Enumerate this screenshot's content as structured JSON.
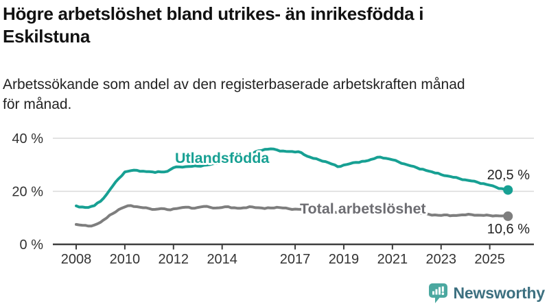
{
  "title": {
    "line1": "Högre arbetslöshet bland utrikes- än inrikesfödda i",
    "line2": "Eskilstuna"
  },
  "subtitle": {
    "line1": "Arbetssökande som andel av den registerbaserade arbetskraften månad",
    "line2": "för månad."
  },
  "chart_data": {
    "type": "line",
    "title": "Högre arbetslöshet bland utrikes- än inrikesfödda i Eskilstuna",
    "subtitle": "Arbetssökande som andel av den registerbaserade arbetskraften månad för månad.",
    "xlabel": "",
    "ylabel": "",
    "x_start": 2008.0,
    "x_step": 0.25,
    "x_range": [
      2008,
      2025.75
    ],
    "ylim": [
      0,
      44
    ],
    "grid": "horizontal",
    "legend_position": "inline-labels",
    "x_ticks": [
      "2008",
      "2010",
      "2012",
      "2014",
      "2017",
      "2019",
      "2021",
      "2023",
      "2025"
    ],
    "x_tick_years": [
      2008,
      2010,
      2012,
      2014,
      2017,
      2019,
      2021,
      2023,
      2025
    ],
    "y_ticks": [
      {
        "value": 0,
        "label": "0 %"
      },
      {
        "value": 20,
        "label": "20 %"
      },
      {
        "value": 40,
        "label": "40 %"
      }
    ],
    "series": [
      {
        "name": "Utlandsfödda",
        "color": "#17a093",
        "label_color": "#17a093",
        "end_label": "20,5 %",
        "end_value": 20.5,
        "values": [
          14.5,
          14.1,
          13.9,
          14.6,
          16.2,
          18.8,
          22.0,
          24.8,
          27.3,
          27.8,
          27.9,
          27.6,
          27.4,
          27.1,
          27.3,
          27.5,
          28.9,
          29.2,
          29.3,
          29.4,
          29.5,
          29.8,
          30.1,
          30.5,
          30.9,
          31.2,
          31.6,
          32.1,
          33.0,
          34.2,
          35.3,
          35.8,
          36.0,
          35.6,
          35.2,
          35.0,
          34.8,
          34.6,
          33.2,
          32.4,
          31.8,
          31.2,
          30.3,
          29.3,
          29.9,
          30.4,
          30.9,
          31.3,
          31.6,
          32.3,
          32.9,
          32.4,
          31.9,
          31.1,
          30.3,
          29.6,
          28.9,
          28.3,
          27.6,
          26.9,
          26.3,
          25.8,
          25.3,
          24.8,
          24.3,
          23.9,
          23.4,
          22.9,
          22.3,
          21.6,
          21.0,
          20.5
        ]
      },
      {
        "name": "Total arbetslöshet",
        "color": "#7e7e7e",
        "label_color": "#6d6d72",
        "end_label": "10,6 %",
        "end_value": 10.6,
        "values": [
          7.5,
          7.2,
          6.9,
          7.3,
          8.3,
          9.9,
          11.6,
          13.1,
          14.1,
          14.6,
          14.2,
          13.8,
          13.5,
          13.2,
          13.5,
          13.1,
          13.4,
          13.7,
          14.0,
          13.6,
          13.9,
          14.3,
          14.0,
          13.7,
          13.9,
          14.2,
          13.8,
          13.6,
          13.8,
          14.1,
          13.8,
          13.5,
          13.7,
          14.0,
          13.7,
          13.4,
          13.3,
          13.2,
          13.0,
          12.8,
          12.6,
          12.5,
          12.3,
          12.1,
          12.2,
          12.3,
          12.4,
          12.5,
          12.7,
          13.3,
          13.6,
          13.3,
          12.9,
          12.6,
          12.3,
          12.0,
          11.8,
          11.6,
          11.3,
          11.1,
          10.9,
          11.1,
          10.9,
          11.0,
          11.1,
          11.2,
          11.0,
          10.9,
          10.9,
          10.8,
          10.7,
          10.6
        ]
      }
    ]
  },
  "colors": {
    "accent_teal": "#17a093",
    "line_gray": "#7e7e7e",
    "grid": "#d9d9d9",
    "axis": "#3d3d3d",
    "tick_text": "#333333",
    "value_label_text": "#222222"
  },
  "footer": {
    "brand": "Newsworthy",
    "logo_color": "#4ba8a0",
    "text_color": "#3d7080"
  }
}
